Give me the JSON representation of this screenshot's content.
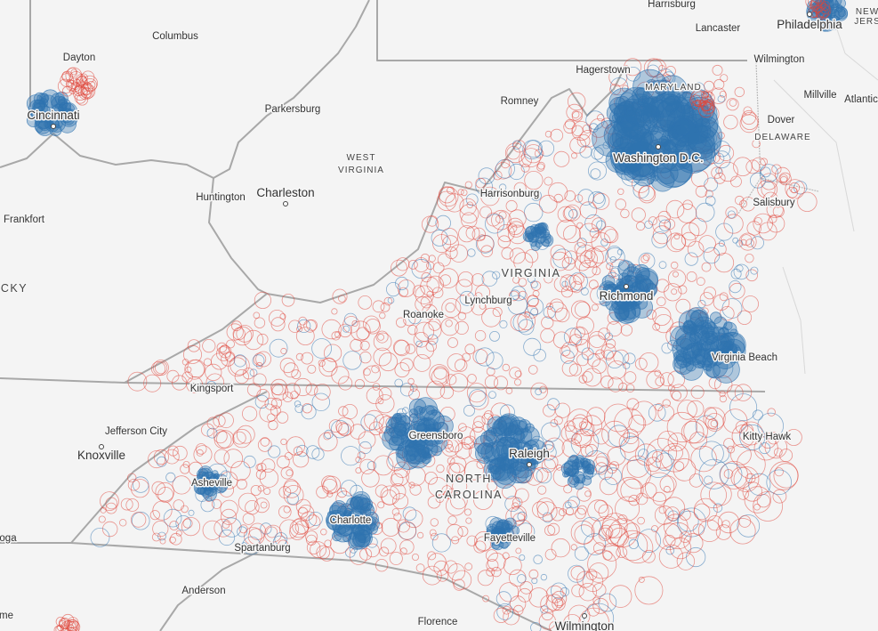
{
  "places": [
    "Harrisburg",
    "Lancaster",
    "Philadelphia",
    "NEW",
    "JERS",
    "Dayton",
    "Columbus",
    "Cincinnati",
    "Hagerstown",
    "Wilmington",
    "MARYLAND",
    "Millville",
    "Atlantic",
    "Romney",
    "Parkersburg",
    "Dover",
    "DELAWARE",
    "Washington D.C.",
    "WEST",
    "VIRGINIA",
    "Huntington",
    "Charleston",
    "Harrisonburg",
    "Salisbury",
    "Frankfort",
    "VIRGINIA",
    "CKY",
    "Richmond",
    "Lynchburg",
    "Roanoke",
    "Virginia Beach",
    "Kingsport",
    "Jefferson City",
    "Kitty Hawk",
    "Greensboro",
    "Knoxville",
    "Raleigh",
    "NORTH",
    "CAROLINA",
    "Asheville",
    "Charlotte",
    "Fayetteville",
    "oga",
    "Spartanburg",
    "Anderson",
    "Florence",
    "Wilmington",
    "me"
  ]
}
